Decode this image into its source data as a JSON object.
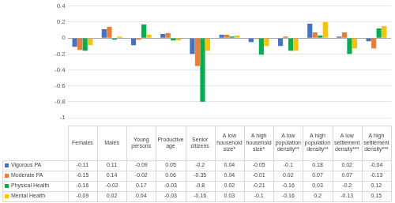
{
  "chart_data": {
    "type": "bar",
    "categories": [
      "Females",
      "Males",
      "Young persons",
      "Productive age",
      "Senior citizens",
      "A low household size*",
      "A high household size*",
      "A low population density**",
      "A high population density**",
      "A low settlement density***",
      "A high settlement density***"
    ],
    "series": [
      {
        "name": "Vigorous PA",
        "color": "#4472c4",
        "values": [
          -0.11,
          0.11,
          -0.09,
          0.05,
          -0.2,
          0.04,
          -0.05,
          -0.1,
          0.18,
          0.02,
          -0.04
        ]
      },
      {
        "name": "Moderate PA",
        "color": "#ed7d31",
        "values": [
          -0.15,
          0.14,
          -0.02,
          0.06,
          -0.35,
          0.04,
          -0.01,
          0.02,
          0.07,
          0.07,
          -0.13
        ]
      },
      {
        "name": "Physical Health",
        "color": "#00b050",
        "values": [
          -0.16,
          -0.02,
          0.17,
          -0.03,
          -0.8,
          0.02,
          -0.21,
          -0.16,
          0.03,
          -0.2,
          0.12
        ]
      },
      {
        "name": "Mental Health",
        "color": "#ffc000",
        "values": [
          -0.09,
          0.02,
          0.04,
          -0.03,
          -0.16,
          0.03,
          -0.1,
          -0.16,
          0.2,
          -0.13,
          0.15
        ]
      }
    ],
    "ylim": [
      -1,
      0.4
    ],
    "yticks": [
      -1,
      -0.8,
      -0.6,
      -0.4,
      -0.2,
      0,
      0.2,
      0.4
    ],
    "grid": true
  }
}
